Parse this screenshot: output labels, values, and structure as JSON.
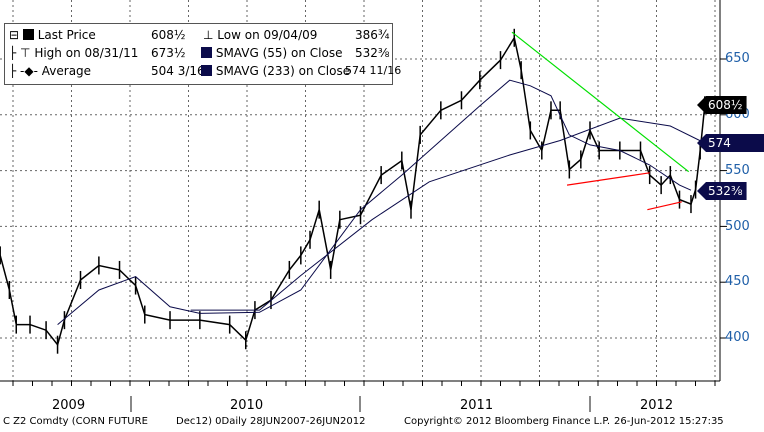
{
  "chart_data": {
    "type": "line",
    "title": "C Z2 Comdty (CORN FUTURE Dec12)",
    "ylim": [
      360,
      690
    ],
    "xlim": [
      2009.43,
      2012.6
    ],
    "y_ticks": [
      400,
      450,
      500,
      550,
      600,
      650
    ],
    "x_labels": [
      "2009",
      "2010",
      "2011",
      "2012"
    ],
    "grid": true,
    "legend_placement": "top-left",
    "legend": [
      {
        "name": "Last Price",
        "value": "608½"
      },
      {
        "name": "High on 08/31/11",
        "value": "673½"
      },
      {
        "name": "Average",
        "value": "504 3/16"
      },
      {
        "name": "Low on 09/04/09",
        "value": "386¾"
      },
      {
        "name": "SMAVG (55) on Close",
        "value": "532⅜"
      },
      {
        "name": "SMAVG (233) on Close",
        "value": "574 11/16"
      }
    ],
    "tags": [
      {
        "label": "608½",
        "color": "#000000"
      },
      {
        "label": "574 11/16",
        "color": "#0b0b4a"
      },
      {
        "label": "532⅜",
        "color": "#0b0b4a"
      }
    ],
    "series": [
      {
        "name": "Last Price",
        "color": "#000000",
        "points": [
          [
            2009.43,
            474
          ],
          [
            2009.47,
            443
          ],
          [
            2009.5,
            412
          ],
          [
            2009.56,
            412
          ],
          [
            2009.63,
            407
          ],
          [
            2009.68,
            394
          ],
          [
            2009.71,
            416
          ],
          [
            2009.78,
            452
          ],
          [
            2009.86,
            465
          ],
          [
            2009.95,
            461
          ],
          [
            2010.02,
            447
          ],
          [
            2010.06,
            421
          ],
          [
            2010.17,
            416
          ],
          [
            2010.3,
            416
          ],
          [
            2010.43,
            412
          ],
          [
            2010.5,
            398
          ],
          [
            2010.54,
            425
          ],
          [
            2010.61,
            434
          ],
          [
            2010.69,
            461
          ],
          [
            2010.74,
            474
          ],
          [
            2010.78,
            488
          ],
          [
            2010.82,
            515
          ],
          [
            2010.87,
            461
          ],
          [
            2010.91,
            506
          ],
          [
            2011,
            510
          ],
          [
            2011.09,
            546
          ],
          [
            2011.18,
            559
          ],
          [
            2011.22,
            515
          ],
          [
            2011.26,
            582
          ],
          [
            2011.35,
            604
          ],
          [
            2011.44,
            613
          ],
          [
            2011.52,
            631
          ],
          [
            2011.61,
            649
          ],
          [
            2011.67,
            669
          ],
          [
            2011.7,
            640
          ],
          [
            2011.74,
            586
          ],
          [
            2011.79,
            568
          ],
          [
            2011.83,
            604
          ],
          [
            2011.87,
            604
          ],
          [
            2011.91,
            551
          ],
          [
            2011.96,
            560
          ],
          [
            2012,
            586
          ],
          [
            2012.04,
            568
          ],
          [
            2012.13,
            568
          ],
          [
            2012.22,
            568
          ],
          [
            2012.26,
            546
          ],
          [
            2012.31,
            537
          ],
          [
            2012.35,
            546
          ],
          [
            2012.39,
            524
          ],
          [
            2012.44,
            520
          ],
          [
            2012.46,
            533
          ],
          [
            2012.48,
            568
          ],
          [
            2012.5,
            608.5
          ]
        ]
      },
      {
        "name": "SMAVG (55) on Close",
        "color": "#0b0b4a",
        "points": [
          [
            2009.68,
            412
          ],
          [
            2009.86,
            443
          ],
          [
            2010.02,
            455
          ],
          [
            2010.17,
            428
          ],
          [
            2010.3,
            422
          ],
          [
            2010.56,
            423
          ],
          [
            2010.74,
            443
          ],
          [
            2010.87,
            479
          ],
          [
            2011,
            515
          ],
          [
            2011.18,
            546
          ],
          [
            2011.35,
            577
          ],
          [
            2011.52,
            608
          ],
          [
            2011.65,
            631
          ],
          [
            2011.74,
            626
          ],
          [
            2011.83,
            617
          ],
          [
            2011.91,
            582
          ],
          [
            2012,
            573
          ],
          [
            2012.13,
            568
          ],
          [
            2012.26,
            555
          ],
          [
            2012.39,
            537
          ],
          [
            2012.44,
            532.4
          ]
        ]
      },
      {
        "name": "SMAVG (233) on Close",
        "color": "#0b0b4a",
        "points": [
          [
            2010.26,
            425
          ],
          [
            2010.56,
            425
          ],
          [
            2010.74,
            456
          ],
          [
            2011.05,
            506
          ],
          [
            2011.3,
            540
          ],
          [
            2011.65,
            564
          ],
          [
            2011.87,
            577
          ],
          [
            2012.13,
            597
          ],
          [
            2012.35,
            590
          ],
          [
            2012.5,
            574.7
          ]
        ]
      }
    ],
    "trendlines": [
      {
        "color": "#00e000",
        "from": [
          2011.66,
          674
        ],
        "to": [
          2012.43,
          549
        ]
      },
      {
        "color": "#ff0000",
        "from": [
          2011.9,
          537
        ],
        "to": [
          2012.26,
          548
        ]
      },
      {
        "color": "#ff0000",
        "from": [
          2012.25,
          515
        ],
        "to": [
          2012.4,
          522
        ]
      }
    ]
  },
  "footer": {
    "ticker": "C Z2 Comdty (CORN FUTURE",
    "range": "Dec12) 0Daily 28JUN2007-26JUN2012",
    "copyright": "Copyright© 2012 Bloomberg Finance L.P.",
    "timestamp": "26-Jun-2012 15:27:35"
  }
}
